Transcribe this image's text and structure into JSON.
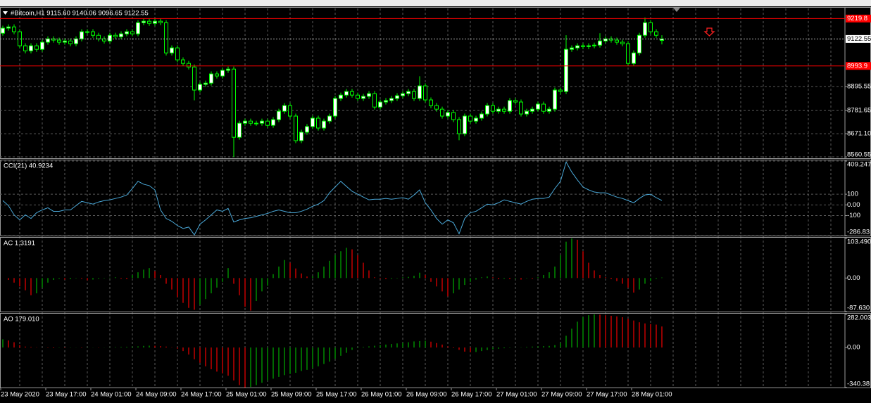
{
  "chart_data": [
    {
      "type": "candlestick",
      "title": "#Bitcoin,H1  9115.60 9140.06 9096.65 9122.55",
      "open": [
        9150,
        9174,
        9180,
        9157,
        9090,
        9066,
        9090,
        9073,
        9107,
        9123,
        9117,
        9107,
        9113,
        9100,
        9123,
        9157,
        9157,
        9140,
        9123,
        9113,
        9140,
        9133,
        9147,
        9157,
        9147,
        9200,
        9207,
        9197,
        9207,
        9200,
        9056,
        9080,
        9023,
        9006,
        8989,
        8879,
        8906,
        8912,
        8956,
        8946,
        8973,
        8979,
        8654,
        8721,
        8731,
        8721,
        8721,
        8731,
        8711,
        8738,
        8778,
        8805,
        8755,
        8638,
        8678,
        8705,
        8745,
        8698,
        8731,
        8755,
        8839,
        8855,
        8872,
        8855,
        8839,
        8849,
        8862,
        8798,
        8822,
        8829,
        8839,
        8852,
        8862,
        8872,
        8839,
        8899,
        8832,
        8805,
        8788,
        8755,
        8772,
        8738,
        8671,
        8755,
        8731,
        8745,
        8765,
        8805,
        8778,
        8788,
        8778,
        8829,
        8822,
        8765,
        8778,
        8788,
        8812,
        8778,
        8788,
        8879,
        8872,
        9073,
        9080,
        9090,
        9086,
        9090,
        9093,
        9113,
        9123,
        9117,
        9107,
        9100,
        9006,
        9056,
        9140,
        9200,
        9157,
        9115.6
      ],
      "high": [
        9186,
        9192,
        9192,
        9169,
        9102,
        9102,
        9102,
        9119,
        9135,
        9135,
        9129,
        9125,
        9125,
        9135,
        9169,
        9169,
        9169,
        9152,
        9135,
        9152,
        9152,
        9159,
        9169,
        9169,
        9212,
        9219,
        9219,
        9219,
        9219,
        9212,
        9092,
        9092,
        9035,
        9018,
        9001,
        8918,
        8924,
        8968,
        8968,
        8985,
        8991,
        8991,
        8733,
        8743,
        8743,
        8733,
        8743,
        8743,
        8750,
        8790,
        8817,
        8817,
        8767,
        8690,
        8717,
        8757,
        8757,
        8743,
        8767,
        8851,
        8867,
        8884,
        8884,
        8867,
        8861,
        8874,
        8874,
        8834,
        8841,
        8851,
        8864,
        8874,
        8884,
        8884,
        8945,
        8911,
        8844,
        8817,
        8800,
        8784,
        8784,
        8750,
        8767,
        8767,
        8757,
        8777,
        8817,
        8817,
        8800,
        8800,
        8841,
        8841,
        8834,
        8790,
        8800,
        8824,
        8824,
        8800,
        8891,
        8891,
        9140,
        9092,
        9102,
        9102,
        9102,
        9105,
        9150,
        9135,
        9135,
        9129,
        9119,
        9112,
        9068,
        9152,
        9225,
        9212,
        9169,
        9140.06
      ],
      "low": [
        9138,
        9162,
        9145,
        9078,
        9054,
        9054,
        9061,
        9061,
        9095,
        9105,
        9095,
        9095,
        9088,
        9088,
        9111,
        9145,
        9128,
        9111,
        9101,
        9101,
        9121,
        9121,
        9135,
        9135,
        9135,
        9188,
        9185,
        9185,
        9188,
        9044,
        9044,
        9011,
        8994,
        8977,
        8830,
        8867,
        8894,
        8900,
        8934,
        8934,
        8961,
        8560,
        8642,
        8709,
        8709,
        8709,
        8709,
        8699,
        8699,
        8726,
        8766,
        8743,
        8626,
        8626,
        8666,
        8693,
        8686,
        8686,
        8719,
        8743,
        8827,
        8843,
        8843,
        8827,
        8827,
        8837,
        8786,
        8786,
        8810,
        8817,
        8827,
        8840,
        8850,
        8827,
        8827,
        8820,
        8793,
        8776,
        8743,
        8743,
        8726,
        8640,
        8659,
        8719,
        8719,
        8733,
        8753,
        8766,
        8766,
        8766,
        8766,
        8810,
        8753,
        8753,
        8766,
        8776,
        8766,
        8766,
        8776,
        8860,
        8860,
        9061,
        9068,
        9074,
        9074,
        9078,
        9081,
        9101,
        9105,
        9095,
        9088,
        8994,
        8994,
        9044,
        9128,
        9145,
        9128,
        9096.65
      ],
      "close": [
        9174,
        9180,
        9157,
        9090,
        9066,
        9090,
        9073,
        9107,
        9123,
        9117,
        9107,
        9113,
        9100,
        9123,
        9157,
        9157,
        9140,
        9123,
        9113,
        9140,
        9133,
        9147,
        9157,
        9147,
        9200,
        9207,
        9197,
        9207,
        9200,
        9056,
        9080,
        9023,
        9006,
        8989,
        8879,
        8906,
        8912,
        8956,
        8946,
        8973,
        8979,
        8654,
        8721,
        8731,
        8721,
        8721,
        8731,
        8711,
        8738,
        8778,
        8805,
        8755,
        8638,
        8678,
        8705,
        8745,
        8698,
        8731,
        8755,
        8839,
        8855,
        8872,
        8855,
        8839,
        8849,
        8862,
        8798,
        8822,
        8829,
        8839,
        8852,
        8862,
        8872,
        8839,
        8899,
        8832,
        8805,
        8788,
        8755,
        8772,
        8738,
        8671,
        8755,
        8731,
        8745,
        8765,
        8805,
        8778,
        8788,
        8778,
        8829,
        8822,
        8765,
        8778,
        8788,
        8812,
        8778,
        8788,
        8879,
        8872,
        9073,
        9080,
        9090,
        9086,
        9090,
        9093,
        9113,
        9123,
        9117,
        9107,
        9100,
        9006,
        9056,
        9140,
        9200,
        9157,
        9140,
        9122.55
      ],
      "color": "#00ff00",
      "up_fill": "#ffffff",
      "down_fill": "#000000",
      "ylim": [
        8554,
        9268
      ],
      "yticks": [
        8560.55,
        {
          "value": 8671.1,
          "label": "8671.10"
        },
        8781.65,
        8895.55
      ],
      "levels": [
        {
          "value": 9219.8,
          "color": "#ff0000"
        },
        {
          "value": 8993.9,
          "color": "#ff0000"
        }
      ],
      "grid": true
    },
    {
      "type": "line",
      "title": "CCI(21) 40.9234",
      "color": "#4aa8d8",
      "values": [
        40,
        -7,
        -93,
        -140,
        -93,
        -127,
        -73,
        -47,
        -27,
        -60,
        -60,
        -47,
        -47,
        -7,
        33,
        20,
        7,
        27,
        40,
        47,
        60,
        73,
        93,
        153,
        220,
        193,
        180,
        140,
        -47,
        -127,
        -153,
        -193,
        -220,
        -207,
        -280,
        -180,
        -140,
        -93,
        -47,
        -60,
        -33,
        -160,
        -140,
        -127,
        -120,
        -107,
        -93,
        -80,
        -60,
        -47,
        -60,
        -73,
        -73,
        -60,
        -40,
        -13,
        7,
        40,
        113,
        167,
        220,
        173,
        127,
        100,
        73,
        47,
        53,
        53,
        60,
        53,
        60,
        67,
        53,
        93,
        140,
        20,
        -47,
        -127,
        -180,
        -140,
        -167,
        -270,
        -127,
        -73,
        -60,
        -27,
        7,
        0,
        20,
        47,
        33,
        20,
        7,
        33,
        53,
        60,
        60,
        73,
        153,
        220,
        400,
        307,
        233,
        167,
        140,
        120,
        113,
        113,
        93,
        73,
        60,
        40,
        20,
        60,
        93,
        100,
        67,
        40.9234
      ],
      "ylim": [
        -286.83,
        409.247
      ],
      "yticks": [
        -286.83,
        -100,
        {
          "value": 0,
          "label": "0.00"
        },
        100,
        409.247
      ],
      "grid": true
    },
    {
      "type": "histogram",
      "title": "AC 1.3191",
      "up_color": "#00a000",
      "down_color": "#e00000",
      "values": [
        0,
        -5,
        -12,
        -22,
        -32,
        -45,
        -40,
        -25,
        -12,
        -5,
        -2,
        -4,
        -3,
        -1,
        -2,
        -6,
        -4,
        -2,
        -1,
        1,
        2,
        -2,
        -3,
        8,
        15,
        22,
        26,
        18,
        8,
        -15,
        -30,
        -50,
        -65,
        -78,
        -83,
        -70,
        -55,
        -40,
        -25,
        -10,
        26,
        -15,
        -45,
        -75,
        -85,
        -60,
        -35,
        -20,
        10,
        30,
        47,
        40,
        25,
        12,
        4,
        5,
        15,
        30,
        45,
        60,
        70,
        79,
        75,
        60,
        40,
        20,
        2,
        -2,
        -3,
        -2,
        -1,
        2,
        3,
        6,
        14,
        8,
        -10,
        -22,
        -35,
        -48,
        -40,
        -30,
        -18,
        -10,
        -4,
        2,
        4,
        2,
        -3,
        -2,
        -3,
        -2,
        -4,
        -1,
        -2,
        2,
        8,
        15,
        30,
        60,
        95,
        103.49,
        100,
        70,
        40,
        20,
        8,
        2,
        -3,
        -8,
        -15,
        -25,
        -38,
        -30,
        -15,
        -8,
        -2,
        1.3191
      ],
      "ylim": [
        -87.63,
        103.49
      ],
      "yticks": [
        {
          "value": -87.63,
          "label": "-87.630"
        },
        {
          "value": 0,
          "label": "0.00"
        },
        {
          "value": 103.49,
          "label": "103.490"
        }
      ]
    },
    {
      "type": "histogram",
      "title": "AO 179.010",
      "up_color": "#00a000",
      "down_color": "#e00000",
      "values": [
        70,
        60,
        45,
        20,
        8,
        5,
        2,
        0,
        -3,
        -5,
        -2,
        -4,
        -2,
        -1,
        -3,
        -2,
        -1,
        -2,
        -1,
        2,
        4,
        5,
        6,
        8,
        10,
        14,
        16,
        15,
        12,
        8,
        2,
        -10,
        -30,
        -60,
        -100,
        -130,
        -160,
        -185,
        -205,
        -220,
        -240,
        -280,
        -320,
        -340.38,
        -335,
        -320,
        -300,
        -280,
        -265,
        -250,
        -235,
        -225,
        -215,
        -200,
        -190,
        -175,
        -160,
        -140,
        -120,
        -95,
        -70,
        -45,
        -20,
        -5,
        5,
        10,
        15,
        20,
        25,
        30,
        35,
        40,
        45,
        52,
        55,
        58,
        50,
        38,
        25,
        10,
        -5,
        -20,
        -35,
        -40,
        -38,
        -30,
        -22,
        -15,
        -10,
        -6,
        -3,
        -1,
        2,
        5,
        8,
        10,
        12,
        14,
        20,
        40,
        100,
        160,
        220,
        260,
        275,
        282.003,
        280,
        275,
        270,
        265,
        258,
        245,
        230,
        215,
        205,
        200,
        195,
        179.01
      ],
      "ylim": [
        -340.38,
        282.003
      ],
      "yticks": [
        -340.38,
        {
          "value": 0,
          "label": "0.00"
        },
        282.003
      ],
      "categories": [
        "23 May 2020",
        null,
        null,
        null,
        null,
        null,
        null,
        null,
        "23 May 17:00",
        null,
        null,
        null,
        null,
        null,
        null,
        null,
        "24 May 01:00",
        null,
        null,
        null,
        null,
        null,
        null,
        null,
        "24 May 09:00",
        null,
        null,
        null,
        null,
        null,
        null,
        null,
        "24 May 17:00",
        null,
        null,
        null,
        null,
        null,
        null,
        null,
        "25 May 01:00",
        null,
        null,
        null,
        null,
        null,
        null,
        null,
        "25 May 09:00",
        null,
        null,
        null,
        null,
        null,
        null,
        null,
        "25 May 17:00",
        null,
        null,
        null,
        null,
        null,
        null,
        null,
        "26 May 01:00",
        null,
        null,
        null,
        null,
        null,
        null,
        null,
        "26 May 09:00",
        null,
        null,
        null,
        null,
        null,
        null,
        null,
        "26 May 17:00",
        null,
        null,
        null,
        null,
        null,
        null,
        null,
        "27 May 01:00",
        null,
        null,
        null,
        null,
        null,
        null,
        null,
        "27 May 09:00",
        null,
        null,
        null,
        null,
        null,
        null,
        null,
        "27 May 17:00",
        null,
        null,
        null,
        null,
        null,
        null,
        null,
        "28 May 01:00",
        null,
        null,
        null,
        null,
        null
      ]
    }
  ]
}
